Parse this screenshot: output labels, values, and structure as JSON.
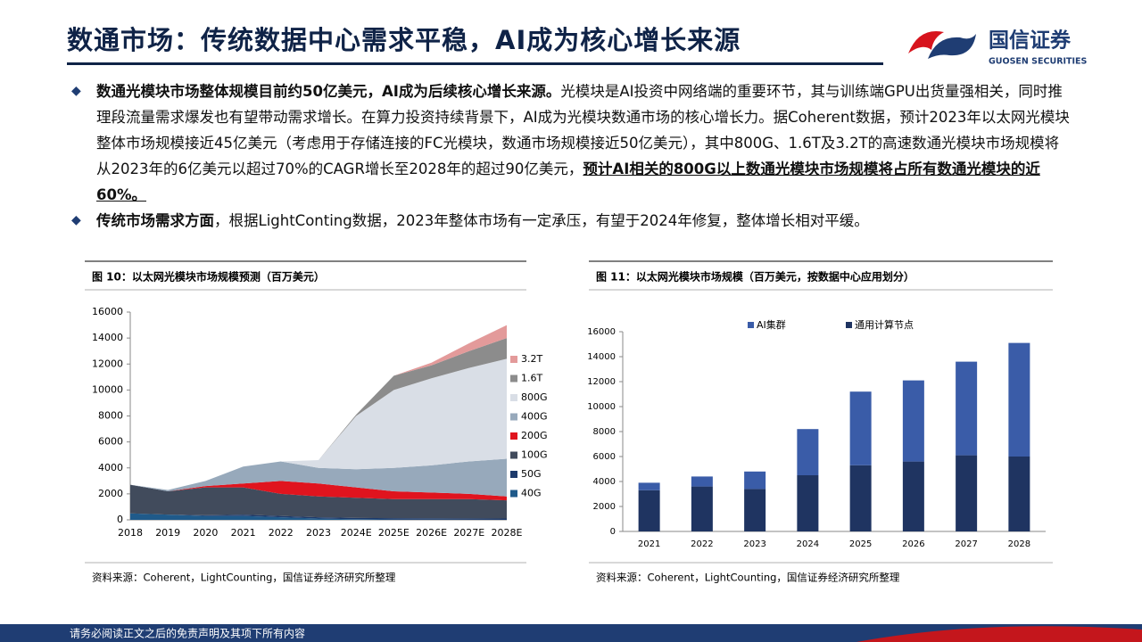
{
  "header": {
    "title": "数通市场：传统数据中心需求平稳，AI成为核心增长来源",
    "logo_cn": "国信证券",
    "logo_en": "GUOSEN SECURITIES"
  },
  "bullets": [
    {
      "lead": "数通光模块市场整体规模目前约50亿美元，AI成为后续核心增长来源。",
      "body": "光模块是AI投资中网络端的重要环节，其与训练端GPU出货量强相关，同时推理段流量需求爆发也有望带动需求增长。在算力投资持续背景下，AI成为光模块数通市场的核心增长力。据Coherent数据，预计2023年以太网光模块整体市场规模接近45亿美元（考虑用于存储连接的FC光模块，数通市场规模接近50亿美元），其中800G、1.6T及3.2T的高速数通光模块市场规模将从2023年的6亿美元以超过70%的CAGR增长至2028年的超过90亿美元，",
      "emphasis": "预计AI相关的800G以上数通光模块市场规模将占所有数通光模块的近60%。"
    },
    {
      "lead": "传统市场需求方面",
      "body": "，根据LightConting数据，2023年整体市场有一定承压，有望于2024年修复，整体增长相对平缓。"
    }
  ],
  "chart_data": [
    {
      "type": "stacked-area",
      "title": "图 10：以太网光模块市场规模预测（百万美元）",
      "source": "资料来源：Coherent，LightCounting，国信证券经济研究所整理",
      "categories": [
        "2018",
        "2019",
        "2020",
        "2021",
        "2022",
        "2023",
        "2024E",
        "2025E",
        "2026E",
        "2027E",
        "2028E"
      ],
      "series": [
        {
          "name": "40G",
          "color": "#1f5a8a",
          "values": [
            500,
            400,
            300,
            300,
            200,
            100,
            50,
            30,
            20,
            10,
            0
          ]
        },
        {
          "name": "50G",
          "color": "#1d3a6b",
          "values": [
            0,
            0,
            50,
            100,
            100,
            100,
            100,
            100,
            100,
            100,
            100
          ]
        },
        {
          "name": "100G",
          "color": "#414b5c",
          "values": [
            2200,
            1800,
            2150,
            2100,
            1700,
            1600,
            1550,
            1470,
            1480,
            1490,
            1400
          ]
        },
        {
          "name": "200G",
          "color": "#e0141e",
          "values": [
            0,
            0,
            100,
            300,
            1000,
            1000,
            800,
            600,
            500,
            400,
            300
          ]
        },
        {
          "name": "400G",
          "color": "#97a9bb",
          "values": [
            0,
            100,
            400,
            1300,
            1500,
            1200,
            1400,
            1800,
            2100,
            2500,
            2900
          ]
        },
        {
          "name": "800G",
          "color": "#d9dee6",
          "values": [
            0,
            0,
            0,
            0,
            0,
            600,
            4100,
            6000,
            6700,
            7200,
            7700
          ]
        },
        {
          "name": "1.6T",
          "color": "#8c8c8c",
          "values": [
            0,
            0,
            0,
            0,
            0,
            0,
            100,
            1100,
            1000,
            1300,
            1600
          ]
        },
        {
          "name": "3.2T",
          "color": "#e39a9a",
          "values": [
            0,
            0,
            0,
            0,
            0,
            0,
            0,
            0,
            200,
            600,
            1000
          ]
        }
      ],
      "ylim": [
        0,
        16000
      ],
      "yticks": [
        0,
        2000,
        4000,
        6000,
        8000,
        10000,
        12000,
        14000,
        16000
      ],
      "legend": "right"
    },
    {
      "type": "stacked-bar",
      "title": "图 11：以太网光模块市场规模（百万美元，按数据中心应用划分）",
      "source": "资料来源：Coherent，LightCounting，国信证券经济研究所整理",
      "categories": [
        "2021",
        "2022",
        "2023",
        "2024",
        "2025",
        "2026",
        "2027",
        "2028"
      ],
      "series": [
        {
          "name": "AI集群",
          "color": "#3a5ca8",
          "values": [
            600,
            800,
            1400,
            3700,
            5900,
            6500,
            7500,
            9100
          ]
        },
        {
          "name": "通用计算节点",
          "color": "#1f3461",
          "values": [
            3300,
            3600,
            3400,
            4500,
            5300,
            5600,
            6100,
            6000
          ]
        }
      ],
      "ylim": [
        0,
        16000
      ],
      "yticks": [
        0,
        2000,
        4000,
        6000,
        8000,
        10000,
        12000,
        14000,
        16000
      ],
      "legend": "top"
    }
  ],
  "footer": {
    "disclaimer": "请务必阅读正文之后的免责声明及其项下所有内容"
  }
}
